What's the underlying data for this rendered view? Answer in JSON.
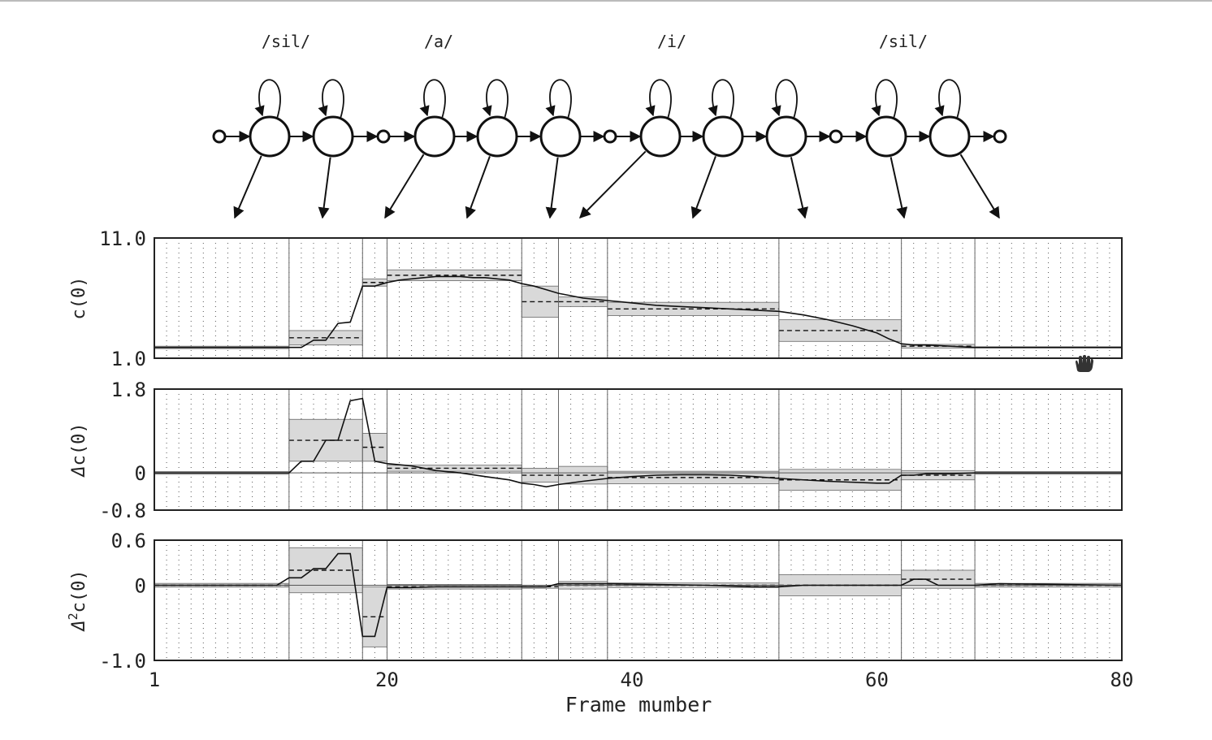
{
  "chart_data": {
    "type": "line",
    "phones": [
      "/sil/",
      "/a/",
      "/i/",
      "/sil/"
    ],
    "states_per_phone": [
      2,
      3,
      3,
      2
    ],
    "state_boundaries": [
      12,
      18,
      20,
      31,
      34,
      38,
      52,
      62,
      68
    ],
    "xlabel": "Frame mumber",
    "x_ticks": [
      1,
      20,
      40,
      60,
      80
    ],
    "xlim": [
      1,
      80
    ],
    "panels": [
      {
        "ylabel": "c(0)",
        "ylabel_base": "c(0)",
        "ylabel_prefix": "",
        "ylabel_sup": "",
        "ylim": [
          1.0,
          11.0
        ],
        "y_ticks": [
          "11.0",
          "1.0"
        ],
        "zero_label": "",
        "state_mean": [
          1.9,
          2.7,
          7.3,
          7.9,
          5.7,
          5.7,
          5.1,
          3.3,
          2.0,
          1.9
        ],
        "state_var": [
          0.2,
          1.2,
          0.6,
          0.9,
          2.6,
          0.8,
          1.1,
          1.8,
          0.3,
          0.1
        ],
        "trajectory": [
          [
            1,
            1.9
          ],
          [
            11,
            1.9
          ],
          [
            12,
            1.9
          ],
          [
            13,
            1.9
          ],
          [
            14,
            2.5
          ],
          [
            15,
            2.5
          ],
          [
            16,
            3.9
          ],
          [
            17,
            4.0
          ],
          [
            18,
            7.0
          ],
          [
            19,
            7.0
          ],
          [
            20,
            7.3
          ],
          [
            21,
            7.5
          ],
          [
            22,
            7.6
          ],
          [
            23,
            7.7
          ],
          [
            24,
            7.8
          ],
          [
            25,
            7.8
          ],
          [
            26,
            7.8
          ],
          [
            27,
            7.7
          ],
          [
            28,
            7.7
          ],
          [
            29,
            7.6
          ],
          [
            30,
            7.5
          ],
          [
            31,
            7.2
          ],
          [
            32,
            7.0
          ],
          [
            33,
            6.7
          ],
          [
            34,
            6.4
          ],
          [
            35,
            6.2
          ],
          [
            36,
            6.0
          ],
          [
            37,
            5.9
          ],
          [
            38,
            5.8
          ],
          [
            40,
            5.6
          ],
          [
            42,
            5.4
          ],
          [
            44,
            5.3
          ],
          [
            46,
            5.2
          ],
          [
            48,
            5.1
          ],
          [
            50,
            5.0
          ],
          [
            52,
            4.9
          ],
          [
            54,
            4.6
          ],
          [
            56,
            4.2
          ],
          [
            58,
            3.7
          ],
          [
            60,
            3.1
          ],
          [
            61,
            2.6
          ],
          [
            62,
            2.2
          ],
          [
            63,
            2.1
          ],
          [
            64,
            2.1
          ],
          [
            66,
            2.0
          ],
          [
            68,
            1.9
          ],
          [
            80,
            1.9
          ]
        ]
      },
      {
        "ylabel": "Δc(0)",
        "ylabel_base": "c(0)",
        "ylabel_prefix": "Δ",
        "ylabel_sup": "",
        "ylim": [
          -0.8,
          1.8
        ],
        "y_ticks": [
          "1.8",
          "-0.8"
        ],
        "zero_label": "0",
        "state_mean": [
          0.0,
          0.7,
          0.55,
          0.1,
          -0.05,
          -0.05,
          -0.1,
          -0.15,
          -0.05,
          0.0
        ],
        "state_var": [
          0.06,
          0.9,
          0.6,
          0.13,
          0.3,
          0.38,
          0.27,
          0.45,
          0.2,
          0.06
        ],
        "trajectory": [
          [
            1,
            0.0
          ],
          [
            11,
            0.0
          ],
          [
            12,
            0.0
          ],
          [
            13,
            0.25
          ],
          [
            14,
            0.25
          ],
          [
            15,
            0.7
          ],
          [
            16,
            0.7
          ],
          [
            17,
            1.55
          ],
          [
            18,
            1.6
          ],
          [
            19,
            0.25
          ],
          [
            20,
            0.2
          ],
          [
            22,
            0.15
          ],
          [
            24,
            0.05
          ],
          [
            26,
            0.0
          ],
          [
            28,
            -0.08
          ],
          [
            30,
            -0.15
          ],
          [
            31,
            -0.22
          ],
          [
            32,
            -0.25
          ],
          [
            33,
            -0.3
          ],
          [
            34,
            -0.25
          ],
          [
            36,
            -0.18
          ],
          [
            38,
            -0.12
          ],
          [
            40,
            -0.08
          ],
          [
            42,
            -0.05
          ],
          [
            44,
            -0.04
          ],
          [
            46,
            -0.04
          ],
          [
            48,
            -0.05
          ],
          [
            50,
            -0.08
          ],
          [
            52,
            -0.12
          ],
          [
            56,
            -0.18
          ],
          [
            60,
            -0.22
          ],
          [
            61,
            -0.22
          ],
          [
            62,
            -0.05
          ],
          [
            63,
            -0.05
          ],
          [
            64,
            -0.02
          ],
          [
            66,
            -0.02
          ],
          [
            68,
            0.0
          ],
          [
            80,
            0.0
          ]
        ]
      },
      {
        "ylabel": "Δ2c(0)",
        "ylabel_base": "c(0)",
        "ylabel_prefix": "Δ",
        "ylabel_sup": "2",
        "ylim": [
          -1.0,
          0.6
        ],
        "y_ticks": [
          "0.6",
          "-1.0"
        ],
        "zero_label": "0",
        "state_mean": [
          0.0,
          0.2,
          -0.42,
          -0.02,
          -0.02,
          0.0,
          0.0,
          0.0,
          0.08,
          0.0
        ],
        "state_var": [
          0.05,
          0.6,
          0.8,
          0.06,
          0.04,
          0.1,
          0.06,
          0.28,
          0.24,
          0.05
        ],
        "trajectory": [
          [
            1,
            0.0
          ],
          [
            11,
            0.0
          ],
          [
            12,
            0.1
          ],
          [
            13,
            0.1
          ],
          [
            14,
            0.22
          ],
          [
            15,
            0.22
          ],
          [
            16,
            0.42
          ],
          [
            17,
            0.42
          ],
          [
            18,
            -0.68
          ],
          [
            19,
            -0.68
          ],
          [
            20,
            -0.03
          ],
          [
            22,
            -0.03
          ],
          [
            24,
            -0.02
          ],
          [
            28,
            -0.02
          ],
          [
            31,
            -0.02
          ],
          [
            32,
            -0.02
          ],
          [
            33,
            -0.02
          ],
          [
            34,
            0.02
          ],
          [
            38,
            0.02
          ],
          [
            42,
            0.01
          ],
          [
            46,
            0.0
          ],
          [
            50,
            -0.02
          ],
          [
            52,
            -0.02
          ],
          [
            54,
            0.0
          ],
          [
            60,
            0.0
          ],
          [
            62,
            0.0
          ],
          [
            63,
            0.08
          ],
          [
            64,
            0.08
          ],
          [
            65,
            0.0
          ],
          [
            68,
            0.0
          ],
          [
            70,
            0.02
          ],
          [
            80,
            0.0
          ]
        ]
      }
    ]
  }
}
